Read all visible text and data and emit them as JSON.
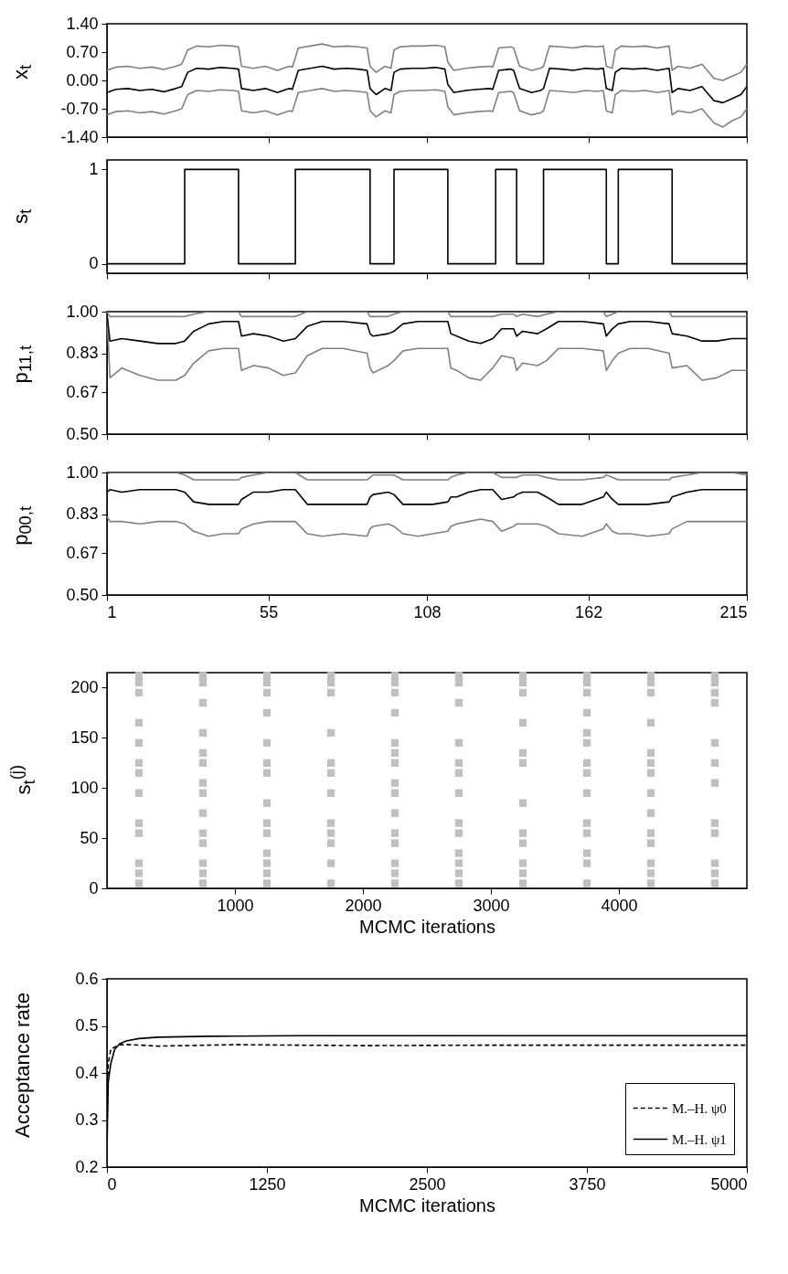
{
  "chart_data": [
    {
      "type": "line",
      "ylabel": "x$_{t}$",
      "xlim": [
        1,
        215
      ],
      "xticks": [
        1,
        55,
        108,
        162,
        215
      ],
      "ylim": [
        -1.4,
        1.4
      ],
      "yticks": [
        {
          "value": -1.4,
          "label": "-1.40"
        },
        {
          "value": -0.7,
          "label": "-0.70"
        },
        {
          "value": 0,
          "label": "0.00"
        },
        {
          "value": 0.7,
          "label": "0.70"
        },
        {
          "value": 1.4,
          "label": "1.40"
        }
      ],
      "tick_labels": "y",
      "x": [
        1,
        4,
        8,
        12,
        16,
        20,
        24,
        26,
        28,
        31,
        35,
        39,
        43,
        45,
        46,
        50,
        54,
        58,
        62,
        63,
        65,
        69,
        73,
        77,
        81,
        85,
        88,
        89,
        91,
        94,
        96,
        97,
        99,
        103,
        107,
        111,
        114,
        115,
        117,
        121,
        125,
        129,
        130,
        132,
        136,
        137,
        139,
        143,
        146,
        147,
        149,
        153,
        157,
        161,
        165,
        167,
        168,
        170,
        171,
        173,
        177,
        181,
        185,
        189,
        190,
        192,
        196,
        200,
        204,
        207,
        210,
        213,
        215
      ],
      "series": [
        {
          "color": "#808080",
          "values": [
            0.25,
            0.33,
            0.35,
            0.3,
            0.33,
            0.27,
            0.35,
            0.4,
            0.75,
            0.85,
            0.83,
            0.87,
            0.85,
            0.83,
            0.35,
            0.3,
            0.35,
            0.25,
            0.35,
            0.33,
            0.8,
            0.85,
            0.9,
            0.83,
            0.85,
            0.83,
            0.8,
            0.35,
            0.2,
            0.35,
            0.3,
            0.75,
            0.83,
            0.85,
            0.85,
            0.87,
            0.83,
            0.45,
            0.25,
            0.3,
            0.33,
            0.35,
            0.33,
            0.8,
            0.83,
            0.8,
            0.35,
            0.25,
            0.3,
            0.35,
            0.85,
            0.83,
            0.8,
            0.85,
            0.83,
            0.85,
            0.35,
            0.3,
            0.75,
            0.85,
            0.83,
            0.85,
            0.8,
            0.85,
            0.25,
            0.35,
            0.3,
            0.4,
            0.05,
            0.0,
            0.1,
            0.2,
            0.4
          ]
        },
        {
          "color": "#808080",
          "values": [
            -0.85,
            -0.77,
            -0.75,
            -0.8,
            -0.77,
            -0.83,
            -0.75,
            -0.7,
            -0.35,
            -0.25,
            -0.27,
            -0.23,
            -0.25,
            -0.27,
            -0.75,
            -0.8,
            -0.75,
            -0.85,
            -0.75,
            -0.77,
            -0.3,
            -0.25,
            -0.2,
            -0.27,
            -0.25,
            -0.27,
            -0.3,
            -0.75,
            -0.9,
            -0.75,
            -0.8,
            -0.35,
            -0.27,
            -0.25,
            -0.25,
            -0.23,
            -0.27,
            -0.65,
            -0.85,
            -0.8,
            -0.77,
            -0.75,
            -0.77,
            -0.3,
            -0.27,
            -0.3,
            -0.75,
            -0.85,
            -0.8,
            -0.75,
            -0.25,
            -0.27,
            -0.3,
            -0.25,
            -0.27,
            -0.25,
            -0.75,
            -0.8,
            -0.35,
            -0.25,
            -0.27,
            -0.25,
            -0.3,
            -0.25,
            -0.85,
            -0.75,
            -0.8,
            -0.7,
            -1.05,
            -1.15,
            -1.0,
            -0.9,
            -0.7
          ]
        },
        {
          "color": "#000000",
          "values": [
            -0.3,
            -0.22,
            -0.2,
            -0.25,
            -0.22,
            -0.28,
            -0.2,
            -0.15,
            0.2,
            0.3,
            0.28,
            0.32,
            0.3,
            0.28,
            -0.2,
            -0.25,
            -0.2,
            -0.3,
            -0.2,
            -0.22,
            0.25,
            0.3,
            0.35,
            0.28,
            0.3,
            0.28,
            0.25,
            -0.2,
            -0.35,
            -0.2,
            -0.25,
            0.2,
            0.28,
            0.3,
            0.3,
            0.32,
            0.28,
            -0.1,
            -0.3,
            -0.25,
            -0.22,
            -0.2,
            -0.22,
            0.25,
            0.28,
            0.25,
            -0.2,
            -0.3,
            -0.25,
            -0.2,
            0.3,
            0.28,
            0.25,
            0.3,
            0.28,
            0.3,
            -0.2,
            -0.25,
            0.2,
            0.3,
            0.28,
            0.3,
            0.25,
            0.3,
            -0.3,
            -0.2,
            -0.25,
            -0.15,
            -0.5,
            -0.55,
            -0.45,
            -0.35,
            -0.15
          ]
        }
      ]
    },
    {
      "type": "step",
      "ylabel": "s$_{t}$",
      "xlim": [
        1,
        215
      ],
      "xticks": [
        1,
        55,
        108,
        162,
        215
      ],
      "ylim": [
        -0.1,
        1.1
      ],
      "yticks": [
        0,
        1
      ],
      "tick_labels": "y",
      "x": [
        1,
        27,
        45,
        64,
        89,
        97,
        115,
        131,
        138,
        147,
        168,
        172,
        190,
        215
      ],
      "series": [
        {
          "color": "#000000",
          "values": [
            0,
            1,
            0,
            1,
            0,
            1,
            0,
            1,
            0,
            1,
            0,
            1,
            0,
            0
          ]
        }
      ]
    },
    {
      "type": "line",
      "ylabel": "p$_{11,t}$",
      "xlim": [
        1,
        215
      ],
      "xticks": [
        1,
        55,
        108,
        162,
        215
      ],
      "ylim": [
        0.5,
        1.0
      ],
      "yticks": [
        {
          "value": 0.5,
          "label": "0.50"
        },
        {
          "value": 0.67,
          "label": "0.67"
        },
        {
          "value": 0.83,
          "label": "0.83"
        },
        {
          "value": 1.0,
          "label": "1.00"
        }
      ],
      "tick_labels": "y",
      "x": [
        1,
        2,
        6,
        12,
        18,
        24,
        27,
        30,
        35,
        40,
        45,
        46,
        50,
        55,
        60,
        64,
        68,
        73,
        80,
        88,
        89,
        90,
        95,
        97,
        100,
        105,
        110,
        115,
        116,
        118,
        122,
        126,
        130,
        133,
        137,
        138,
        140,
        145,
        148,
        152,
        160,
        167,
        168,
        170,
        172,
        176,
        182,
        189,
        190,
        195,
        200,
        205,
        210,
        215
      ],
      "series": [
        {
          "color": "#808080",
          "values": [
            1,
            0.98,
            0.98,
            0.98,
            0.98,
            0.98,
            0.98,
            0.99,
            1,
            1,
            1,
            0.98,
            0.98,
            0.98,
            0.98,
            0.98,
            1,
            1,
            1,
            1,
            0.98,
            0.98,
            0.98,
            0.99,
            1,
            1,
            1,
            1,
            0.98,
            0.98,
            0.98,
            0.98,
            0.98,
            0.99,
            0.99,
            0.98,
            0.99,
            0.98,
            0.99,
            1,
            1,
            1,
            0.98,
            0.99,
            1,
            1,
            1,
            1,
            0.98,
            0.98,
            0.98,
            0.98,
            0.98,
            0.98
          ]
        },
        {
          "color": "#808080",
          "values": [
            0.99,
            0.73,
            0.77,
            0.74,
            0.72,
            0.72,
            0.74,
            0.79,
            0.84,
            0.85,
            0.85,
            0.76,
            0.78,
            0.77,
            0.74,
            0.75,
            0.82,
            0.85,
            0.85,
            0.83,
            0.77,
            0.75,
            0.78,
            0.8,
            0.84,
            0.85,
            0.85,
            0.85,
            0.77,
            0.76,
            0.73,
            0.72,
            0.77,
            0.82,
            0.81,
            0.76,
            0.79,
            0.78,
            0.8,
            0.85,
            0.85,
            0.84,
            0.76,
            0.8,
            0.83,
            0.85,
            0.85,
            0.83,
            0.77,
            0.78,
            0.72,
            0.73,
            0.76,
            0.76
          ]
        },
        {
          "color": "#000000",
          "values": [
            0.99,
            0.88,
            0.89,
            0.88,
            0.87,
            0.87,
            0.88,
            0.92,
            0.95,
            0.96,
            0.96,
            0.9,
            0.91,
            0.9,
            0.88,
            0.89,
            0.94,
            0.96,
            0.96,
            0.95,
            0.91,
            0.9,
            0.91,
            0.92,
            0.95,
            0.96,
            0.96,
            0.96,
            0.91,
            0.9,
            0.88,
            0.87,
            0.89,
            0.93,
            0.93,
            0.9,
            0.92,
            0.91,
            0.93,
            0.96,
            0.96,
            0.95,
            0.9,
            0.93,
            0.95,
            0.96,
            0.96,
            0.95,
            0.91,
            0.9,
            0.88,
            0.88,
            0.89,
            0.89
          ]
        }
      ]
    },
    {
      "type": "line",
      "ylabel": "p$_{00,t}$",
      "xlim": [
        1,
        215
      ],
      "xticks": [
        1,
        55,
        108,
        162,
        215
      ],
      "ylim": [
        0.5,
        1.0
      ],
      "yticks": [
        {
          "value": 0.5,
          "label": "0.50"
        },
        {
          "value": 0.67,
          "label": "0.67"
        },
        {
          "value": 0.83,
          "label": "0.83"
        },
        {
          "value": 1.0,
          "label": "1.00"
        }
      ],
      "x": [
        1,
        2,
        6,
        12,
        18,
        24,
        27,
        30,
        35,
        40,
        45,
        46,
        50,
        55,
        60,
        64,
        68,
        73,
        80,
        88,
        89,
        90,
        95,
        97,
        100,
        105,
        110,
        115,
        116,
        118,
        122,
        126,
        130,
        133,
        137,
        138,
        140,
        145,
        148,
        152,
        160,
        167,
        168,
        170,
        172,
        176,
        182,
        189,
        190,
        195,
        200,
        205,
        210,
        215
      ],
      "series": [
        {
          "color": "#808080",
          "values": [
            0.99,
            1,
            1,
            1,
            1,
            1,
            0.99,
            0.97,
            0.97,
            0.97,
            0.97,
            0.98,
            0.99,
            1,
            1,
            1,
            0.97,
            0.97,
            0.97,
            0.97,
            0.98,
            0.99,
            0.99,
            0.99,
            0.97,
            0.97,
            0.97,
            0.97,
            0.98,
            0.99,
            1,
            1,
            1,
            0.98,
            0.98,
            0.98,
            0.99,
            0.99,
            0.98,
            0.97,
            0.97,
            0.98,
            0.99,
            0.98,
            0.97,
            0.97,
            0.97,
            0.97,
            0.98,
            0.99,
            1,
            1,
            1,
            0.99
          ]
        },
        {
          "color": "#808080",
          "values": [
            0.82,
            0.8,
            0.8,
            0.79,
            0.8,
            0.8,
            0.79,
            0.76,
            0.74,
            0.75,
            0.75,
            0.77,
            0.79,
            0.8,
            0.8,
            0.8,
            0.75,
            0.74,
            0.75,
            0.74,
            0.77,
            0.78,
            0.79,
            0.78,
            0.75,
            0.74,
            0.75,
            0.76,
            0.78,
            0.79,
            0.8,
            0.81,
            0.8,
            0.76,
            0.78,
            0.79,
            0.79,
            0.79,
            0.78,
            0.75,
            0.74,
            0.77,
            0.79,
            0.76,
            0.75,
            0.75,
            0.74,
            0.75,
            0.77,
            0.8,
            0.8,
            0.8,
            0.8,
            0.8
          ]
        },
        {
          "color": "#000000",
          "values": [
            0.92,
            0.93,
            0.92,
            0.93,
            0.93,
            0.93,
            0.92,
            0.88,
            0.87,
            0.87,
            0.87,
            0.89,
            0.92,
            0.92,
            0.93,
            0.93,
            0.87,
            0.87,
            0.87,
            0.87,
            0.9,
            0.91,
            0.92,
            0.91,
            0.87,
            0.87,
            0.87,
            0.88,
            0.9,
            0.9,
            0.92,
            0.93,
            0.93,
            0.89,
            0.9,
            0.91,
            0.92,
            0.92,
            0.9,
            0.87,
            0.87,
            0.9,
            0.92,
            0.89,
            0.87,
            0.87,
            0.87,
            0.88,
            0.9,
            0.92,
            0.93,
            0.93,
            0.93,
            0.93
          ]
        }
      ]
    },
    {
      "type": "scatter",
      "marker": "square",
      "ylabel": "s$_{t}$$^{(j)}$",
      "xlabel": "MCMC iterations",
      "xlim": [
        0,
        5000
      ],
      "xticks": [
        1000,
        2000,
        3000,
        4000
      ],
      "ylim": [
        0,
        215
      ],
      "yticks": [
        0,
        50,
        100,
        150,
        200
      ],
      "series": [
        {
          "color": "#c0c0c0",
          "x": [
            250,
            750,
            1250,
            1750,
            2250,
            2750,
            3250,
            3750,
            4250,
            4750,
            250,
            750,
            1250,
            1750,
            2250,
            2750,
            3250,
            3750,
            4250,
            4750,
            250,
            1250,
            1750,
            2250,
            3250,
            3750,
            4250,
            4750,
            750,
            2750,
            4750,
            1250,
            2250,
            3750,
            250,
            3250,
            4250,
            750,
            1750,
            3750,
            250,
            1250,
            2250,
            2750,
            3750,
            4750,
            750,
            2250,
            3250,
            4250,
            250,
            750,
            1250,
            1750,
            2250,
            2750,
            3250,
            3750,
            4250,
            4750,
            250,
            1250,
            1750,
            2750,
            3750,
            4250,
            750,
            2250,
            4750,
            250,
            750,
            1750,
            2250,
            2750,
            3750,
            4250,
            1250,
            3250,
            750,
            2250,
            4250,
            250,
            1250,
            1750,
            2750,
            3750,
            4750,
            250,
            750,
            1250,
            1750,
            2250,
            2750,
            3250,
            3750,
            4250,
            4750,
            750,
            1750,
            2250,
            3250,
            4250,
            1250,
            2750,
            3750,
            250,
            750,
            1250,
            1750,
            2250,
            2750,
            3250,
            3750,
            4250,
            4750,
            250,
            750,
            1250,
            2250,
            2750,
            3250,
            4250,
            4750,
            250,
            750,
            1250,
            1750,
            2250,
            2750,
            3250,
            3750,
            4250,
            4750
          ],
          "values": [
            212,
            212,
            212,
            212,
            212,
            212,
            212,
            212,
            212,
            212,
            205,
            205,
            205,
            205,
            205,
            205,
            205,
            205,
            205,
            205,
            195,
            195,
            195,
            195,
            195,
            195,
            195,
            195,
            185,
            185,
            185,
            175,
            175,
            175,
            165,
            165,
            165,
            155,
            155,
            155,
            145,
            145,
            145,
            145,
            145,
            145,
            135,
            135,
            135,
            135,
            125,
            125,
            125,
            125,
            125,
            125,
            125,
            125,
            125,
            125,
            115,
            115,
            115,
            115,
            115,
            115,
            105,
            105,
            105,
            95,
            95,
            95,
            95,
            95,
            95,
            95,
            85,
            85,
            75,
            75,
            75,
            65,
            65,
            65,
            65,
            65,
            65,
            55,
            55,
            55,
            55,
            55,
            55,
            55,
            55,
            55,
            55,
            45,
            45,
            45,
            45,
            45,
            35,
            35,
            35,
            25,
            25,
            25,
            25,
            25,
            25,
            25,
            25,
            25,
            25,
            15,
            15,
            15,
            15,
            15,
            15,
            15,
            15,
            5,
            5,
            5,
            5,
            5,
            5,
            5,
            5,
            5,
            5
          ]
        }
      ]
    },
    {
      "type": "line",
      "ylabel": "Acceptance rate",
      "xlabel": "MCMC iterations",
      "xlim": [
        0,
        5000
      ],
      "xticks": [
        0,
        1250,
        2500,
        3750,
        5000
      ],
      "ylim": [
        0.2,
        0.6
      ],
      "yticks": [
        0.2,
        0.3,
        0.4,
        0.5,
        0.6
      ],
      "legend": "bottom right",
      "series": [
        {
          "name": "M.–H. ψ0",
          "color": "#000000",
          "line_style": "dashed",
          "x": [
            1,
            10,
            30,
            60,
            100,
            200,
            400,
            1000,
            2000,
            3000,
            5000
          ],
          "values": [
            0.3,
            0.42,
            0.45,
            0.455,
            0.46,
            0.46,
            0.457,
            0.46,
            0.458,
            0.459,
            0.459
          ]
        },
        {
          "name": "M.–H. ψ1",
          "color": "#000000",
          "line_style": "solid",
          "x": [
            1,
            10,
            30,
            60,
            100,
            150,
            250,
            400,
            800,
            1500,
            5000
          ],
          "values": [
            0.25,
            0.38,
            0.42,
            0.45,
            0.462,
            0.468,
            0.473,
            0.476,
            0.478,
            0.479,
            0.479
          ]
        }
      ]
    }
  ]
}
